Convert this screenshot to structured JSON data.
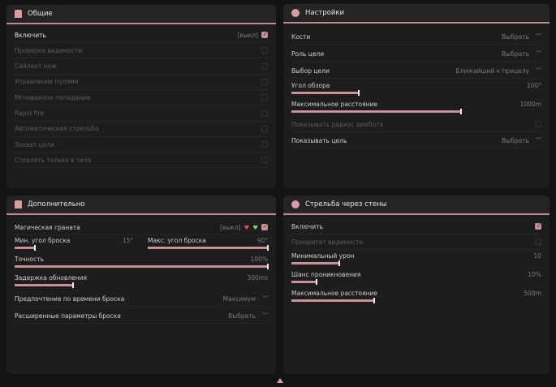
{
  "accent": "#c98f96",
  "general": {
    "title": "Общие",
    "icon": "person-icon",
    "items": [
      {
        "label": "Включить",
        "badge": "[выкл]",
        "checked": true
      },
      {
        "label": "Проверка видимости",
        "checked": false
      },
      {
        "label": "Сайлент нож",
        "checked": false
      },
      {
        "label": "Управление пулями",
        "checked": false
      },
      {
        "label": "Мгновенное попадание",
        "checked": false
      },
      {
        "label": "Rapid fire",
        "checked": false
      },
      {
        "label": "Автоматическая стрельба",
        "checked": false
      },
      {
        "label": "Захват цели",
        "checked": false
      },
      {
        "label": "Стрелять только в тело",
        "checked": false
      }
    ]
  },
  "settings": {
    "title": "Настройки",
    "icon": "gear-icon",
    "bones": {
      "label": "Кости",
      "value": "Выбрать"
    },
    "role": {
      "label": "Роль цели",
      "value": "Выбрать"
    },
    "target": {
      "label": "Выбор цели",
      "value": "Ближайший к прицелу"
    },
    "fov": {
      "label": "Угол обзора",
      "value": "100°",
      "percent": 27
    },
    "maxdist": {
      "label": "Максимальное расстояние",
      "value": "1000m",
      "percent": 68
    },
    "radius": {
      "label": "Показывать радиус аимбота",
      "checked": false,
      "disabled": true
    },
    "show": {
      "label": "Показывать цель",
      "value": "Выбрать"
    }
  },
  "extra": {
    "title": "Дополнительно",
    "icon": "person-icon",
    "grenade": {
      "label": "Магическая граната",
      "badge": "[выкл]",
      "checked": true
    },
    "minangle": {
      "label": "Мин. угол броска",
      "value": "15°",
      "percent": 17
    },
    "maxangle": {
      "label": "Макс. угол броска",
      "value": "90°",
      "percent": 100
    },
    "accuracy": {
      "label": "Точность",
      "value": "100%",
      "percent": 100
    },
    "delay": {
      "label": "Задержка обновления",
      "value": "300ms",
      "percent": 23
    },
    "pref": {
      "label": "Предпочтение по времени броска",
      "value": "Максимум"
    },
    "adv": {
      "label": "Расширенные параметры броска",
      "value": "Выбрать"
    }
  },
  "wall": {
    "title": "Стрельба через стены",
    "icon": "gear-icon",
    "enable": {
      "label": "Включить",
      "checked": true
    },
    "prio": {
      "label": "Приоритет видимости",
      "checked": false,
      "disabled": true
    },
    "mindmg": {
      "label": "Минимальный урон",
      "value": "10",
      "percent": 19
    },
    "pen": {
      "label": "Шанс проникновения",
      "value": "10%",
      "percent": 10
    },
    "dist": {
      "label": "Максимальное расстояние",
      "value": "500m",
      "percent": 33
    }
  }
}
